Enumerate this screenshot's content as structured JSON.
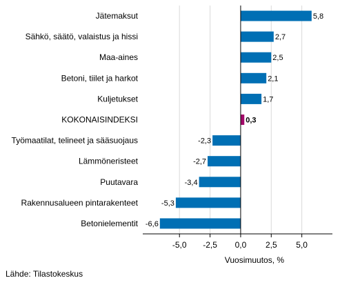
{
  "chart_data": {
    "type": "bar",
    "orientation": "horizontal",
    "categories": [
      "Jätemaksut",
      "Sähkö, säätö, valaistus ja hissi",
      "Maa-aines",
      "Betoni, tiilet ja harkot",
      "Kuljetukset",
      "KOKONAISINDEKSI",
      "Työmaatilat, telineet ja sääsuojaus",
      "Lämmöneristeet",
      "Puutavara",
      "Rakennusalueen pintarakenteet",
      "Betonielementit"
    ],
    "values": [
      5.8,
      2.7,
      2.5,
      2.1,
      1.7,
      0.3,
      -2.3,
      -2.7,
      -3.4,
      -5.3,
      -6.6
    ],
    "value_labels": [
      "5,8",
      "2,7",
      "2,5",
      "2,1",
      "1,7",
      "0,3",
      "-2,3",
      "-2,7",
      "-3,4",
      "-5,3",
      "-6,6"
    ],
    "highlight_index": 5,
    "xlabel": "Vuosimuutos, %",
    "xlim": [
      -8,
      7.5
    ],
    "xticks": [
      -5,
      -2.5,
      0,
      2.5,
      5
    ],
    "xtick_labels": [
      "-5,0",
      "-2,5",
      "0,0",
      "2,5",
      "5,0"
    ],
    "grid": "vertical",
    "colors": {
      "bar": "#006fb4",
      "highlight": "#a3096a",
      "grid": "#d9d9d9",
      "axis": "#000000"
    }
  },
  "source": "Lähde: Tilastokeskus"
}
